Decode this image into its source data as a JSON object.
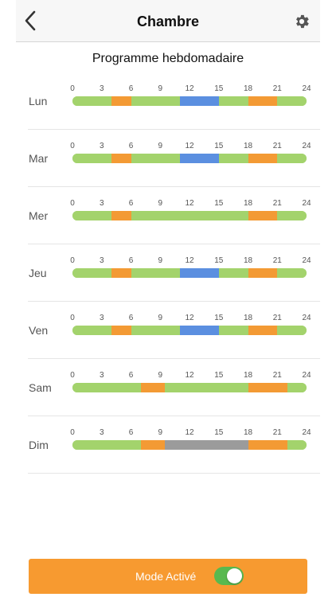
{
  "header": {
    "title": "Chambre",
    "back_icon": "chevron-left-icon",
    "settings_icon": "gear-icon"
  },
  "page": {
    "title": "Programme hebdomadaire"
  },
  "schedule": {
    "hour_ticks": [
      "0",
      "3",
      "6",
      "9",
      "12",
      "15",
      "18",
      "21",
      "24"
    ],
    "colors": {
      "green": "#a3d36c",
      "orange": "#f39a34",
      "blue": "#5b8fe0",
      "gray": "#9b9b9b"
    },
    "days": [
      {
        "label": "Lun",
        "segments": [
          {
            "from": 0,
            "to": 4,
            "color": "green"
          },
          {
            "from": 4,
            "to": 6,
            "color": "orange"
          },
          {
            "from": 6,
            "to": 11,
            "color": "green"
          },
          {
            "from": 11,
            "to": 15,
            "color": "blue"
          },
          {
            "from": 15,
            "to": 18,
            "color": "green"
          },
          {
            "from": 18,
            "to": 21,
            "color": "orange"
          },
          {
            "from": 21,
            "to": 24,
            "color": "green"
          }
        ]
      },
      {
        "label": "Mar",
        "segments": [
          {
            "from": 0,
            "to": 4,
            "color": "green"
          },
          {
            "from": 4,
            "to": 6,
            "color": "orange"
          },
          {
            "from": 6,
            "to": 11,
            "color": "green"
          },
          {
            "from": 11,
            "to": 15,
            "color": "blue"
          },
          {
            "from": 15,
            "to": 18,
            "color": "green"
          },
          {
            "from": 18,
            "to": 21,
            "color": "orange"
          },
          {
            "from": 21,
            "to": 24,
            "color": "green"
          }
        ]
      },
      {
        "label": "Mer",
        "segments": [
          {
            "from": 0,
            "to": 4,
            "color": "green"
          },
          {
            "from": 4,
            "to": 6,
            "color": "orange"
          },
          {
            "from": 6,
            "to": 18,
            "color": "green"
          },
          {
            "from": 18,
            "to": 21,
            "color": "orange"
          },
          {
            "from": 21,
            "to": 24,
            "color": "green"
          }
        ]
      },
      {
        "label": "Jeu",
        "segments": [
          {
            "from": 0,
            "to": 4,
            "color": "green"
          },
          {
            "from": 4,
            "to": 6,
            "color": "orange"
          },
          {
            "from": 6,
            "to": 11,
            "color": "green"
          },
          {
            "from": 11,
            "to": 15,
            "color": "blue"
          },
          {
            "from": 15,
            "to": 18,
            "color": "green"
          },
          {
            "from": 18,
            "to": 21,
            "color": "orange"
          },
          {
            "from": 21,
            "to": 24,
            "color": "green"
          }
        ]
      },
      {
        "label": "Ven",
        "segments": [
          {
            "from": 0,
            "to": 4,
            "color": "green"
          },
          {
            "from": 4,
            "to": 6,
            "color": "orange"
          },
          {
            "from": 6,
            "to": 11,
            "color": "green"
          },
          {
            "from": 11,
            "to": 15,
            "color": "blue"
          },
          {
            "from": 15,
            "to": 18,
            "color": "green"
          },
          {
            "from": 18,
            "to": 21,
            "color": "orange"
          },
          {
            "from": 21,
            "to": 24,
            "color": "green"
          }
        ]
      },
      {
        "label": "Sam",
        "segments": [
          {
            "from": 0,
            "to": 7,
            "color": "green"
          },
          {
            "from": 7,
            "to": 9.5,
            "color": "orange"
          },
          {
            "from": 9.5,
            "to": 18,
            "color": "green"
          },
          {
            "from": 18,
            "to": 22,
            "color": "orange"
          },
          {
            "from": 22,
            "to": 24,
            "color": "green"
          }
        ]
      },
      {
        "label": "Dim",
        "segments": [
          {
            "from": 0,
            "to": 7,
            "color": "green"
          },
          {
            "from": 7,
            "to": 9.5,
            "color": "orange"
          },
          {
            "from": 9.5,
            "to": 18,
            "color": "gray"
          },
          {
            "from": 18,
            "to": 22,
            "color": "orange"
          },
          {
            "from": 22,
            "to": 24,
            "color": "green"
          }
        ]
      }
    ]
  },
  "footer": {
    "mode_label": "Mode Activé",
    "toggle_on": true
  }
}
